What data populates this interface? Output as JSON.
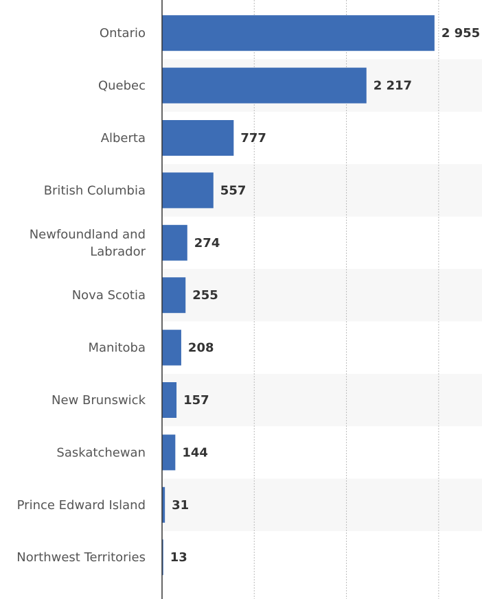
{
  "chart_data": {
    "type": "bar",
    "orientation": "horizontal",
    "categories": [
      "Ontario",
      "Quebec",
      "Alberta",
      "British Columbia",
      "Newfoundland and Labrador",
      "Nova Scotia",
      "Manitoba",
      "New Brunswick",
      "Saskatchewan",
      "Prince Edward Island",
      "Northwest Territories"
    ],
    "category_lines": [
      [
        "Ontario"
      ],
      [
        "Quebec"
      ],
      [
        "Alberta"
      ],
      [
        "British Columbia"
      ],
      [
        "Newfoundland and",
        "Labrador"
      ],
      [
        "Nova Scotia"
      ],
      [
        "Manitoba"
      ],
      [
        "New Brunswick"
      ],
      [
        "Saskatchewan"
      ],
      [
        "Prince Edward Island"
      ],
      [
        "Northwest Territories"
      ]
    ],
    "values": [
      2955,
      2217,
      777,
      557,
      274,
      255,
      208,
      157,
      144,
      31,
      13
    ],
    "value_labels": [
      "2 955",
      "2 217",
      "777",
      "557",
      "274",
      "255",
      "208",
      "157",
      "144",
      "31",
      "13"
    ],
    "xlim": [
      0,
      3500
    ],
    "grid": true,
    "bar_color": "#3d6db5",
    "stripe_color": "#f7f7f7",
    "grid_color": "#bbbbbb",
    "axis_color": "#333333"
  }
}
